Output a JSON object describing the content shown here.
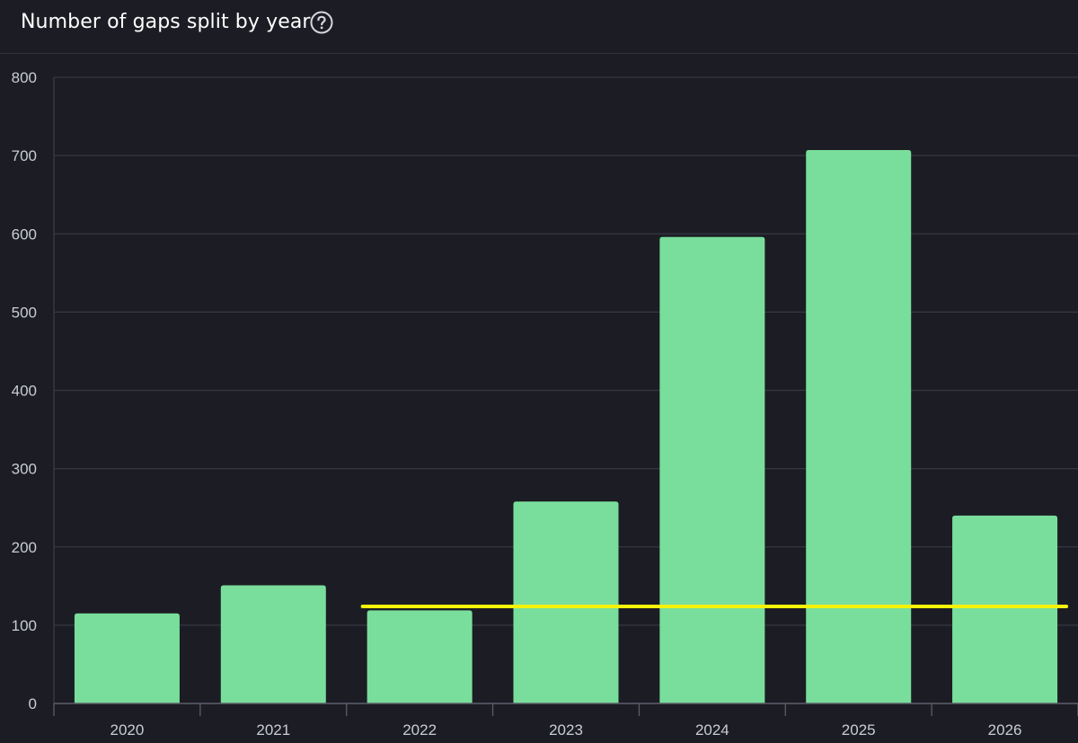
{
  "header": {
    "title": "Number of gaps split by year",
    "help_icon": "question-circle-icon"
  },
  "colors": {
    "background": "#1c1d24",
    "bar": "#79de9b",
    "grid": "#343744",
    "axis_text": "#c9ccd4",
    "highlight_line": "#f5f20a"
  },
  "chart_data": {
    "type": "bar",
    "title": "Number of gaps split by year",
    "xlabel": "",
    "ylabel": "",
    "categories": [
      "2020",
      "2021",
      "2022",
      "2023",
      "2024",
      "2025",
      "2026"
    ],
    "values": [
      115,
      151,
      119,
      258,
      596,
      707,
      240
    ],
    "ylim": [
      0,
      800
    ],
    "yticks": [
      0,
      100,
      200,
      300,
      400,
      500,
      600,
      700,
      800
    ],
    "grid": true,
    "legend": "none",
    "annotations": [
      {
        "type": "horizontal-line",
        "y": 124,
        "x_from": "2022",
        "x_to": "2026",
        "color": "#f5f20a"
      }
    ]
  }
}
